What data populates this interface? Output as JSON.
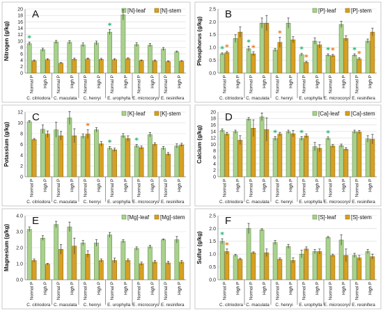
{
  "colors": {
    "leaf": "#a9d18e",
    "leaf_stroke": "#548235",
    "stem": "#d6a024",
    "stem_stroke": "#8a6100",
    "star_green": "#22b573",
    "star_orange": "#e87722"
  },
  "species": [
    "C. citriodora",
    "C. maculata",
    "C. henryi",
    "E. urophylla",
    "E. microcorys",
    "E. resinifera"
  ],
  "treatments": [
    "Normal P",
    "High P"
  ],
  "chart_data": [
    {
      "type": "bar",
      "letter": "A",
      "ylabel": "Nitrogen (g/kg)",
      "ylim": [
        0,
        20
      ],
      "ticks": [
        0,
        2,
        4,
        6,
        8,
        10,
        12,
        14,
        16,
        18,
        20
      ],
      "legend": "top-right",
      "grid": true,
      "series": [
        {
          "name": "[N]-leaf",
          "values": [
            9.2,
            7.3,
            9.7,
            9.6,
            8.8,
            9.4,
            12.8,
            18.2,
            8.9,
            8.7,
            7.5,
            6.6
          ],
          "errors": [
            0.5,
            0.5,
            0.5,
            0.5,
            0.6,
            0.6,
            0.8,
            1.6,
            0.6,
            0.5,
            0.5,
            0.3
          ]
        },
        {
          "name": "[N]-stem",
          "values": [
            3.8,
            4.2,
            3.1,
            4.3,
            4.4,
            4.3,
            4.2,
            4.5,
            3.9,
            3.8,
            3.6,
            3.7
          ],
          "errors": [
            0.3,
            0.3,
            0.2,
            0.4,
            0.3,
            0.3,
            0.3,
            0.3,
            0.2,
            0.3,
            0.2,
            0.2
          ]
        }
      ],
      "stars": [
        {
          "bar": 0,
          "color": "star_green"
        },
        {
          "bar": 6,
          "color": "star_green"
        }
      ]
    },
    {
      "type": "bar",
      "letter": "B",
      "ylabel": "Phosphorus (g/kg)",
      "ylim": [
        0,
        2.5
      ],
      "ticks": [
        0,
        0.5,
        1,
        1.5,
        2,
        2.5
      ],
      "legend": "top-right",
      "grid": true,
      "series": [
        {
          "name": "[P]-leaf",
          "values": [
            0.75,
            1.35,
            0.95,
            1.95,
            0.9,
            1.95,
            0.72,
            1.25,
            0.7,
            1.9,
            0.7,
            1.25
          ],
          "errors": [
            0.04,
            0.15,
            0.1,
            0.2,
            0.06,
            0.2,
            0.05,
            0.12,
            0.05,
            0.12,
            0.05,
            0.08
          ]
        },
        {
          "name": "[P]-stem",
          "values": [
            0.8,
            1.6,
            0.75,
            1.95,
            1.2,
            1.3,
            0.42,
            1.1,
            0.68,
            1.35,
            0.55,
            1.6
          ],
          "errors": [
            0.05,
            0.2,
            0.08,
            0.3,
            0.2,
            0.12,
            0.04,
            0.12,
            0.05,
            0.1,
            0.05,
            0.15
          ]
        }
      ],
      "stars": [
        {
          "bar": 0,
          "color": "star_green"
        },
        {
          "bar": 0,
          "color": "star_orange",
          "series": 1
        },
        {
          "bar": 2,
          "color": "star_green"
        },
        {
          "bar": 2,
          "color": "star_orange",
          "series": 1
        },
        {
          "bar": 4,
          "color": "star_orange",
          "series": 1
        },
        {
          "bar": 6,
          "color": "star_green"
        },
        {
          "bar": 6,
          "color": "star_orange",
          "series": 1
        },
        {
          "bar": 8,
          "color": "star_green"
        },
        {
          "bar": 8,
          "color": "star_orange",
          "series": 1
        },
        {
          "bar": 10,
          "color": "star_green"
        },
        {
          "bar": 10,
          "color": "star_orange",
          "series": 1
        }
      ]
    },
    {
      "type": "bar",
      "letter": "C",
      "ylabel": "Potassium (g/kg)",
      "ylim": [
        0,
        12
      ],
      "ticks": [
        0,
        2,
        4,
        6,
        8,
        10,
        12
      ],
      "legend": "top-right",
      "grid": true,
      "series": [
        {
          "name": "[K]-leaf",
          "values": [
            10.2,
            8.8,
            8.7,
            10.9,
            7.5,
            8.7,
            5.3,
            7.6,
            5.7,
            7.8,
            5.3,
            5.7
          ],
          "errors": [
            0.2,
            0.8,
            1.4,
            1.2,
            0.4,
            0.4,
            0.3,
            0.4,
            0.3,
            0.4,
            0.3,
            0.4
          ]
        },
        {
          "name": "[K]-stem",
          "values": [
            6.9,
            7.9,
            7.6,
            7.6,
            7.9,
            6.1,
            5.0,
            7.1,
            5.4,
            6.0,
            4.2,
            5.9
          ],
          "errors": [
            0.2,
            0.6,
            0.8,
            1.3,
            0.8,
            0.4,
            0.3,
            0.5,
            0.3,
            0.3,
            0.3,
            0.3
          ]
        }
      ],
      "stars": [
        {
          "bar": 4,
          "color": "star_orange",
          "series": 1
        },
        {
          "bar": 6,
          "color": "star_green"
        },
        {
          "bar": 8,
          "color": "star_green"
        }
      ]
    },
    {
      "type": "bar",
      "letter": "D",
      "ylabel": "Calcium (g/kg)",
      "ylim": [
        0,
        20
      ],
      "ticks": [
        0,
        2,
        4,
        6,
        8,
        10,
        12,
        14,
        16,
        18,
        20
      ],
      "legend": "top-right",
      "grid": true,
      "series": [
        {
          "name": "[Ca]-leaf",
          "values": [
            14.3,
            13.9,
            17.8,
            18.5,
            11.8,
            13.9,
            11.8,
            9.3,
            11.8,
            9.6,
            13.9,
            11.7
          ],
          "errors": [
            0.5,
            0.5,
            0.5,
            1.2,
            0.6,
            0.5,
            0.6,
            1.3,
            0.5,
            0.5,
            0.5,
            1.0
          ]
        },
        {
          "name": "[Ca]-stem",
          "values": [
            13.2,
            11.3,
            15.0,
            14.6,
            13.2,
            13.3,
            12.6,
            8.8,
            9.5,
            8.5,
            13.8,
            11.6
          ],
          "errors": [
            0.5,
            1.4,
            2.6,
            3.6,
            0.5,
            1.0,
            0.6,
            1.1,
            0.5,
            0.5,
            0.5,
            1.5
          ]
        }
      ],
      "stars": [
        {
          "bar": 4,
          "color": "star_green"
        },
        {
          "bar": 6,
          "color": "star_green"
        },
        {
          "bar": 8,
          "color": "star_green"
        }
      ]
    },
    {
      "type": "bar",
      "letter": "E",
      "ylabel": "Magnesium (g/kg)",
      "ylim": [
        0,
        4
      ],
      "ticks": [
        0,
        1,
        2,
        3,
        4
      ],
      "legend": "top-right",
      "grid": true,
      "series": [
        {
          "name": "[Mg]-leaf",
          "values": [
            3.15,
            2.6,
            3.45,
            3.3,
            2.3,
            2.3,
            2.8,
            2.4,
            1.95,
            2.05,
            2.5,
            2.5
          ],
          "errors": [
            0.15,
            0.15,
            0.2,
            0.3,
            0.15,
            0.2,
            0.15,
            0.1,
            0.1,
            0.1,
            0.05,
            0.2
          ]
        },
        {
          "name": "[Mg]-stem",
          "values": [
            1.2,
            0.97,
            1.9,
            2.1,
            1.6,
            1.2,
            1.2,
            1.2,
            1.0,
            1.1,
            1.05,
            1.1
          ],
          "errors": [
            0.1,
            0.05,
            0.3,
            0.5,
            0.2,
            0.1,
            0.15,
            0.1,
            0.1,
            0.1,
            0.1,
            0.1
          ]
        }
      ],
      "stars": []
    },
    {
      "type": "bar",
      "letter": "F",
      "ylabel": "Sulfur (g/kg)",
      "ylim": [
        0,
        2.5
      ],
      "ticks": [
        0,
        0.5,
        1,
        1.5,
        2,
        2.5
      ],
      "legend": "top-right",
      "grid": true,
      "series": [
        {
          "name": "[S]-leaf",
          "values": [
            1.5,
            0.95,
            2.0,
            1.95,
            1.45,
            1.3,
            1.0,
            1.1,
            1.65,
            1.55,
            0.95,
            1.1
          ],
          "errors": [
            0.1,
            0.04,
            0.2,
            0.04,
            0.08,
            0.08,
            0.15,
            0.08,
            0.04,
            0.2,
            0.08,
            0.08
          ]
        },
        {
          "name": "[S]-stem",
          "values": [
            1.1,
            0.8,
            1.05,
            1.05,
            0.8,
            0.75,
            1.2,
            1.1,
            0.95,
            0.95,
            0.85,
            0.9
          ],
          "errors": [
            0.1,
            0.04,
            0.04,
            0.15,
            0.05,
            0.1,
            0.08,
            0.1,
            0.05,
            0.25,
            0.1,
            0.1
          ]
        }
      ],
      "stars": [
        {
          "bar": 0,
          "color": "star_green"
        },
        {
          "bar": 0,
          "color": "star_orange",
          "series": 1
        }
      ]
    }
  ]
}
